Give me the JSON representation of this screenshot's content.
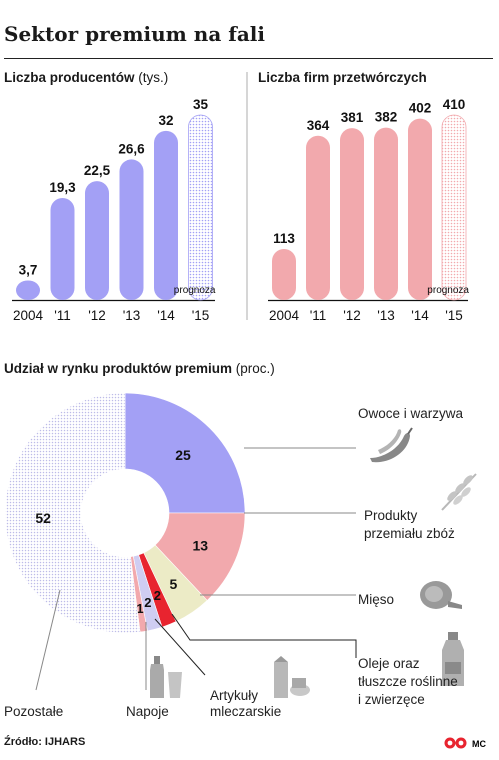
{
  "header": {
    "title": "Sektor premium na fali"
  },
  "source": "Źródło: IJHARS",
  "logo_text": "MC",
  "colors": {
    "blue": "#a3a0f5",
    "pink": "#f2a9ad",
    "pink_light": "#f7c4c4",
    "beige": "#ecebc6",
    "red": "#e8242f",
    "lilac": "#cfcdf2",
    "grey_dots": "#c0bdea"
  },
  "chart_data": [
    {
      "type": "bar",
      "title": "Liczba producentów",
      "unit": "(tys.)",
      "categories": [
        "2004",
        "'11",
        "'12",
        "'13",
        "'14",
        "'15"
      ],
      "values": [
        3.7,
        19.3,
        22.5,
        26.6,
        32,
        35
      ],
      "value_labels": [
        "3,7",
        "19,3",
        "22,5",
        "26,6",
        "32",
        "35"
      ],
      "forecast_index": 5,
      "forecast_label": "prognoza"
    },
    {
      "type": "bar",
      "title": "Liczba firm przetwórczych",
      "unit": "",
      "categories": [
        "2004",
        "'11",
        "'12",
        "'13",
        "'14",
        "'15"
      ],
      "values": [
        113,
        364,
        381,
        382,
        402,
        410
      ],
      "value_labels": [
        "113",
        "364",
        "381",
        "382",
        "402",
        "410"
      ],
      "forecast_index": 5,
      "forecast_label": "prognoza"
    },
    {
      "type": "pie",
      "donut": true,
      "title": "Udział w rynku produktów premium",
      "unit": "(proc.)",
      "slices": [
        {
          "label": "Owoce i warzywa",
          "value": 25,
          "value_label": "25",
          "color": "#a3a0f5",
          "icon": "chili-pepper-icon"
        },
        {
          "label": "Produkty przemiału zbóż",
          "value": 13,
          "value_label": "13",
          "color": "#f2a9ad",
          "icon": "wheat-icon"
        },
        {
          "label": "Mięso",
          "value": 5,
          "value_label": "5",
          "color": "#ecebc6",
          "icon": "ham-icon"
        },
        {
          "label": "Oleje oraz tłuszcze roślinne i zwierzęce",
          "value": 2,
          "value_label": "2",
          "color": "#e8242f",
          "icon": "oil-bottle-icon"
        },
        {
          "label": "Artykuły mleczarskie",
          "value": 2,
          "value_label": "2",
          "color": "#cfcdf2",
          "icon": "dairy-icon"
        },
        {
          "label": "Napoje",
          "value": 1,
          "value_label": "1",
          "color": "#f2a9ad",
          "icon": "drinks-icon"
        },
        {
          "label": "Pozostałe",
          "value": 52,
          "value_label": "52",
          "color": "#c0bdea",
          "icon": ""
        }
      ]
    }
  ]
}
